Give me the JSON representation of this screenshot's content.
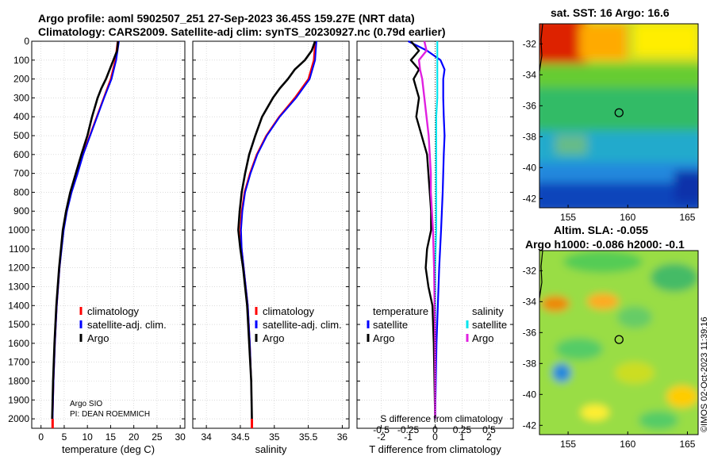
{
  "header": {
    "line1": "Argo profile: aoml 5902507_251 27-Sep-2023 36.45S 159.27E (NRT data)",
    "line2": "Climatology: CARS2009. Satellite-adj clim: synTS_20230927.nc (0.79d earlier)"
  },
  "map_top": {
    "title": "sat. SST: 16 Argo: 16.6"
  },
  "map_bottom": {
    "title1": "Altim. SLA: -0.055",
    "title2": "Argo h1000: -0.086 h2000: -0.1"
  },
  "credit": "©IMOS 02-Oct-2023 11:39:16",
  "colors": {
    "climatology": "#ff0000",
    "satellite": "#0000ff",
    "argo": "#000000",
    "sat_sal": "#00e5ee",
    "argo_sal": "#e020e0"
  },
  "chart_data": [
    {
      "type": "line",
      "name": "temperature-profile",
      "xlabel": "temperature (deg C)",
      "ylabel": "",
      "xlim": [
        -2,
        31
      ],
      "ylim": [
        2050,
        0
      ],
      "x_ticks": [
        "0",
        "5",
        "10",
        "15",
        "20",
        "25",
        "30"
      ],
      "y_ticks": [
        "0",
        "100",
        "200",
        "300",
        "400",
        "500",
        "600",
        "700",
        "800",
        "900",
        "1000",
        "1100",
        "1200",
        "1300",
        "1400",
        "1500",
        "1600",
        "1700",
        "1800",
        "1900",
        "2000"
      ],
      "legend": [
        "climatology",
        "satellite-adj. clim.",
        "Argo"
      ],
      "annotation": [
        "Argo SIO",
        "PI: DEAN ROEMMICH"
      ],
      "series": [
        {
          "name": "climatology",
          "depth": [
            0,
            100,
            200,
            300,
            400,
            500,
            600,
            700,
            800,
            900,
            1000,
            1200,
            1400,
            1600,
            1800,
            2000
          ],
          "values": [
            16.5,
            16.0,
            15.0,
            13.5,
            12.0,
            10.5,
            9.0,
            7.8,
            6.5,
            5.5,
            4.8,
            4.0,
            3.4,
            3.0,
            2.7,
            2.5
          ]
        },
        {
          "name": "satellite-adj. clim.",
          "depth": [
            0,
            100,
            200,
            300,
            400,
            500,
            600,
            700,
            800,
            900,
            1000,
            1200,
            1400,
            1600,
            1800,
            2000
          ],
          "values": [
            16.8,
            16.2,
            15.2,
            13.6,
            12.1,
            10.6,
            9.1,
            7.9,
            6.6,
            5.6,
            4.9,
            4.0,
            3.4,
            3.0,
            2.7,
            2.5
          ]
        },
        {
          "name": "Argo",
          "depth": [
            0,
            50,
            100,
            150,
            200,
            250,
            300,
            400,
            500,
            600,
            700,
            800,
            900,
            1000,
            1200,
            1400,
            1600,
            1800,
            2000
          ],
          "values": [
            16.6,
            16.4,
            15.6,
            14.8,
            14.0,
            13.0,
            12.2,
            11.0,
            10.0,
            8.7,
            7.5,
            6.3,
            5.4,
            4.7,
            3.9,
            3.3,
            2.9,
            2.6,
            2.4
          ]
        }
      ]
    },
    {
      "type": "line",
      "name": "salinity-profile",
      "xlabel": "salinity",
      "xlim": [
        33.8,
        36.1
      ],
      "ylim": [
        2050,
        0
      ],
      "x_ticks": [
        "34",
        "34.5",
        "35",
        "35.5",
        "36"
      ],
      "legend": [
        "climatology",
        "satellite-adj. clim.",
        "Argo"
      ],
      "series": [
        {
          "name": "climatology",
          "depth": [
            0,
            100,
            200,
            300,
            400,
            500,
            600,
            700,
            800,
            900,
            1000,
            1100,
            1200,
            1300,
            1400,
            1600,
            1800,
            2000
          ],
          "values": [
            35.6,
            35.58,
            35.5,
            35.3,
            35.07,
            34.88,
            34.74,
            34.64,
            34.56,
            34.52,
            34.5,
            34.52,
            34.55,
            34.58,
            34.61,
            34.64,
            34.66,
            34.67
          ]
        },
        {
          "name": "satellite-adj. clim.",
          "depth": [
            0,
            100,
            200,
            300,
            400,
            500,
            600,
            700,
            800,
            900,
            1000,
            1100,
            1200,
            1300,
            1400,
            1600,
            1800,
            2000
          ],
          "values": [
            35.62,
            35.6,
            35.52,
            35.32,
            35.08,
            34.89,
            34.75,
            34.65,
            34.57,
            34.53,
            34.51,
            34.52,
            34.55,
            34.58,
            34.61,
            34.64,
            34.66,
            34.67
          ]
        },
        {
          "name": "Argo",
          "depth": [
            0,
            50,
            100,
            150,
            200,
            250,
            300,
            350,
            400,
            500,
            600,
            700,
            800,
            900,
            1000,
            1100,
            1200,
            1300,
            1400,
            1600,
            1800,
            2000
          ],
          "values": [
            35.6,
            35.55,
            35.45,
            35.3,
            35.2,
            35.08,
            34.98,
            34.9,
            34.82,
            34.72,
            34.63,
            34.57,
            34.52,
            34.49,
            34.47,
            34.5,
            34.54,
            34.57,
            34.6,
            34.63,
            34.66,
            34.67
          ]
        }
      ]
    },
    {
      "type": "line",
      "name": "difference-profile",
      "xlabel": "T difference from climatology",
      "xlabel_top": "S difference from climatology",
      "xlim": [
        -2.9,
        2.9
      ],
      "ylim": [
        2050,
        0
      ],
      "x_ticks": [
        "-2",
        "-1",
        "0",
        "1",
        "2"
      ],
      "s_ticks": [
        "-0.5",
        "-0.25",
        "0",
        "0.25",
        "0.5"
      ],
      "legend_left_title": "temperature",
      "legend_right_title": "salinity",
      "legend_left": [
        "satellite",
        "Argo"
      ],
      "legend_right": [
        "satellite",
        "Argo"
      ],
      "series": [
        {
          "name": "T satellite",
          "depth": [
            0,
            50,
            100,
            150,
            200,
            300,
            400,
            500,
            600,
            700,
            800,
            900,
            1000,
            1200,
            1600,
            2000
          ],
          "values": [
            -1.0,
            -0.3,
            0.2,
            0.35,
            0.3,
            0.3,
            0.32,
            0.35,
            0.32,
            0.3,
            0.28,
            0.25,
            0.22,
            0.15,
            0.05,
            0.0
          ]
        },
        {
          "name": "T Argo",
          "depth": [
            0,
            50,
            100,
            150,
            200,
            300,
            400,
            500,
            600,
            700,
            800,
            900,
            1000,
            1100,
            1200,
            1300,
            1400,
            1600,
            2000
          ],
          "values": [
            -0.9,
            -0.6,
            -0.9,
            -0.6,
            -0.8,
            -0.6,
            -0.7,
            -0.5,
            -0.3,
            -0.25,
            -0.2,
            -0.15,
            -0.15,
            -0.3,
            -0.35,
            -0.25,
            -0.1,
            -0.05,
            0.0
          ]
        },
        {
          "name": "S satellite",
          "depth": [
            0,
            100,
            200,
            300,
            400,
            500,
            600,
            800,
            1000,
            1200,
            1600,
            2000
          ],
          "values": [
            0.02,
            0.02,
            0.02,
            0.02,
            0.01,
            0.01,
            0.01,
            0.01,
            0.01,
            0.0,
            0.0,
            0.0
          ]
        },
        {
          "name": "S Argo",
          "depth": [
            0,
            50,
            100,
            150,
            200,
            300,
            400,
            500,
            600,
            700,
            800,
            900,
            1000,
            1200,
            1600,
            2000
          ],
          "values": [
            -0.1,
            -0.08,
            -0.15,
            -0.14,
            -0.12,
            -0.1,
            -0.08,
            -0.06,
            -0.05,
            -0.04,
            -0.04,
            -0.03,
            -0.02,
            -0.01,
            0.0,
            0.0
          ]
        }
      ]
    },
    {
      "type": "heatmap",
      "name": "sst-map",
      "x_ticks": [
        "155",
        "160",
        "165"
      ],
      "y_ticks": [
        "-32",
        "-34",
        "-36",
        "-38",
        "-40",
        "-42"
      ],
      "marker": {
        "lon": 159.27,
        "lat": -36.45
      }
    },
    {
      "type": "heatmap",
      "name": "sla-map",
      "x_ticks": [
        "155",
        "160",
        "165"
      ],
      "y_ticks": [
        "-32",
        "-34",
        "-36",
        "-38",
        "-40",
        "-42"
      ],
      "marker": {
        "lon": 159.27,
        "lat": -36.45
      }
    }
  ]
}
